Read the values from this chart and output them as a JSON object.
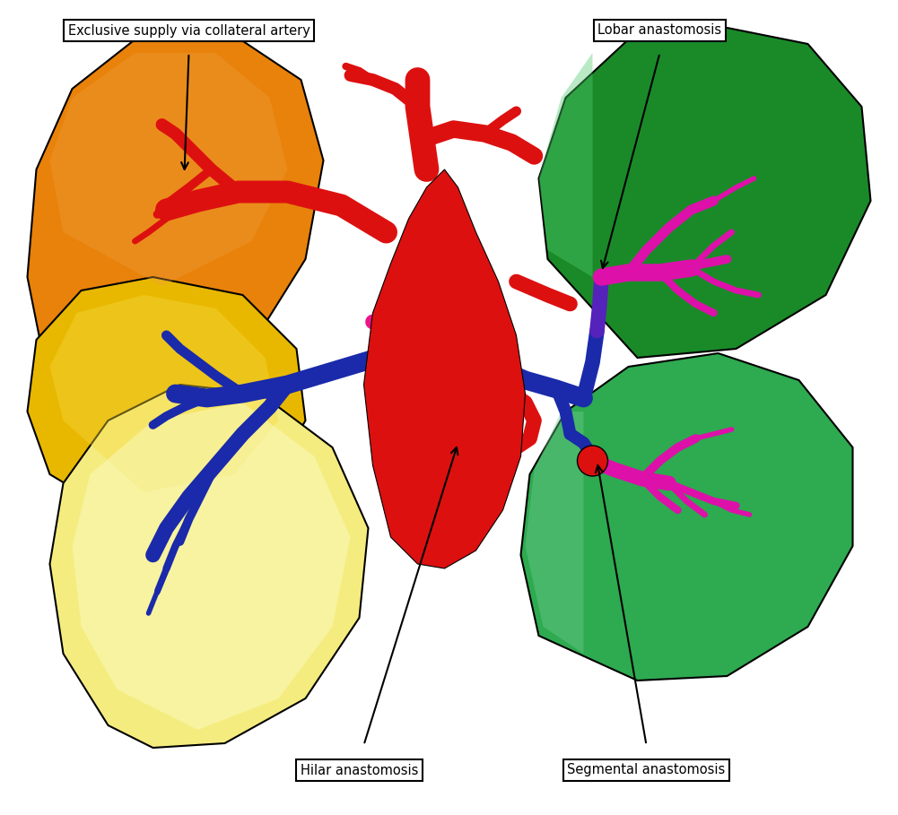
{
  "bg_color": "#ffffff",
  "orange_color": "#E8820A",
  "yellow_dark_color": "#E8B800",
  "yellow_light_color": "#F5EC80",
  "green_dark_color": "#1A8A28",
  "green_light_color": "#2EAA50",
  "red_color": "#DD1010",
  "blue_color": "#1A2AAA",
  "magenta_color": "#DD10AA",
  "purple_color": "#5522BB",
  "label_exclusive": "Exclusive supply via collateral artery",
  "label_lobar": "Lobar anastomosis",
  "label_hilar": "Hilar anastomosis",
  "label_segmental": "Segmental anastomosis",
  "figsize": [
    10.01,
    9.09
  ],
  "dpi": 100
}
